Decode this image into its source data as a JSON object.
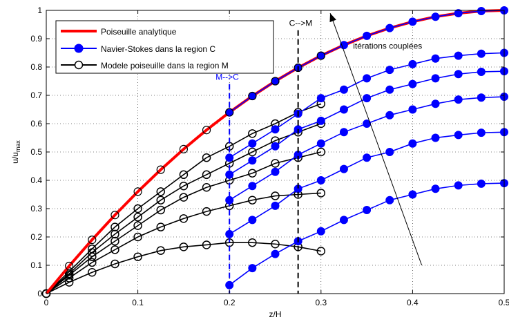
{
  "chart_data": {
    "type": "line",
    "xlabel": "z/H",
    "ylabel_main": "u/u",
    "ylabel_sub": "max",
    "xlim": [
      0,
      0.5
    ],
    "ylim": [
      0,
      1
    ],
    "xticks": [
      0,
      0.1,
      0.2,
      0.3,
      0.4,
      0.5
    ],
    "xtick_labels": [
      "0",
      "0.1",
      "0.2",
      "0.3",
      "0.4",
      "0.5"
    ],
    "yticks": [
      0,
      0.1,
      0.2,
      0.3,
      0.4,
      0.5,
      0.6,
      0.7,
      0.8,
      0.9,
      1
    ],
    "ytick_labels": [
      "0",
      "0.1",
      "0.2",
      "0.3",
      "0.4",
      "0.5",
      "0.6",
      "0.7",
      "0.8",
      "0.9",
      "1"
    ],
    "grid": true,
    "legend": {
      "placement": "top-left",
      "entries": [
        {
          "label": "Poiseuille analytique",
          "color": "#ff0000",
          "marker": "none"
        },
        {
          "label": "Navier-Stokes dans la region C",
          "color": "#0000ff",
          "marker": "filled-circle"
        },
        {
          "label": "Modele poiseuille dans la region M",
          "color": "#000000",
          "marker": "open-circle"
        }
      ]
    },
    "analytic": {
      "label": "Poiseuille analytique",
      "color": "#ff0000",
      "x": [
        0,
        0.025,
        0.05,
        0.075,
        0.1,
        0.125,
        0.15,
        0.175,
        0.2,
        0.225,
        0.25,
        0.275,
        0.3,
        0.325,
        0.35,
        0.375,
        0.4,
        0.425,
        0.45,
        0.475,
        0.5
      ],
      "y": [
        0,
        0.0975,
        0.19,
        0.2775,
        0.36,
        0.4375,
        0.51,
        0.5775,
        0.64,
        0.6975,
        0.75,
        0.7975,
        0.84,
        0.8775,
        0.91,
        0.9375,
        0.96,
        0.9775,
        0.99,
        0.9975,
        1
      ]
    },
    "ns_series": [
      {
        "x": [
          0.2,
          0.225,
          0.25,
          0.275,
          0.3,
          0.325,
          0.35,
          0.375,
          0.4,
          0.425,
          0.45,
          0.475,
          0.5
        ],
        "y": [
          0.03,
          0.09,
          0.14,
          0.185,
          0.22,
          0.26,
          0.295,
          0.33,
          0.35,
          0.37,
          0.382,
          0.388,
          0.39
        ]
      },
      {
        "x": [
          0.2,
          0.225,
          0.25,
          0.275,
          0.3,
          0.325,
          0.35,
          0.375,
          0.4,
          0.425,
          0.45,
          0.475,
          0.5
        ],
        "y": [
          0.21,
          0.26,
          0.31,
          0.37,
          0.4,
          0.44,
          0.48,
          0.5,
          0.53,
          0.55,
          0.56,
          0.568,
          0.57
        ]
      },
      {
        "x": [
          0.2,
          0.225,
          0.25,
          0.275,
          0.3,
          0.325,
          0.35,
          0.375,
          0.4,
          0.425,
          0.45,
          0.475,
          0.5
        ],
        "y": [
          0.33,
          0.38,
          0.43,
          0.49,
          0.53,
          0.57,
          0.6,
          0.63,
          0.65,
          0.67,
          0.685,
          0.692,
          0.695
        ]
      },
      {
        "x": [
          0.2,
          0.225,
          0.25,
          0.275,
          0.3,
          0.325,
          0.35,
          0.375,
          0.4,
          0.425,
          0.45,
          0.475,
          0.5
        ],
        "y": [
          0.42,
          0.47,
          0.52,
          0.58,
          0.61,
          0.65,
          0.69,
          0.72,
          0.74,
          0.76,
          0.775,
          0.783,
          0.785
        ]
      },
      {
        "x": [
          0.2,
          0.225,
          0.25,
          0.275,
          0.3,
          0.325,
          0.35,
          0.375,
          0.4,
          0.425,
          0.45,
          0.475,
          0.5
        ],
        "y": [
          0.48,
          0.53,
          0.58,
          0.635,
          0.69,
          0.72,
          0.76,
          0.79,
          0.81,
          0.83,
          0.84,
          0.847,
          0.85
        ]
      },
      {
        "x": [
          0.2,
          0.225,
          0.25,
          0.275,
          0.3,
          0.325,
          0.35,
          0.375,
          0.4,
          0.425,
          0.45,
          0.475,
          0.5
        ],
        "y": [
          0.64,
          0.6975,
          0.75,
          0.7975,
          0.84,
          0.8775,
          0.91,
          0.9375,
          0.96,
          0.9775,
          0.99,
          0.9975,
          1
        ]
      }
    ],
    "m_series": [
      {
        "x": [
          0,
          0.025,
          0.05,
          0.075,
          0.1,
          0.125,
          0.15,
          0.175,
          0.2,
          0.225,
          0.25,
          0.275,
          0.3
        ],
        "y": [
          0,
          0.04,
          0.075,
          0.105,
          0.13,
          0.152,
          0.165,
          0.172,
          0.18,
          0.18,
          0.175,
          0.165,
          0.15
        ]
      },
      {
        "x": [
          0,
          0.025,
          0.05,
          0.075,
          0.1,
          0.125,
          0.15,
          0.175,
          0.2,
          0.225,
          0.25,
          0.275,
          0.3
        ],
        "y": [
          0,
          0.055,
          0.11,
          0.155,
          0.2,
          0.235,
          0.265,
          0.29,
          0.31,
          0.33,
          0.345,
          0.35,
          0.355
        ]
      },
      {
        "x": [
          0,
          0.025,
          0.05,
          0.075,
          0.1,
          0.125,
          0.15,
          0.175,
          0.2,
          0.225,
          0.25,
          0.275,
          0.3
        ],
        "y": [
          0,
          0.065,
          0.13,
          0.185,
          0.24,
          0.295,
          0.34,
          0.375,
          0.4,
          0.425,
          0.46,
          0.48,
          0.5
        ]
      },
      {
        "x": [
          0,
          0.025,
          0.05,
          0.075,
          0.1,
          0.125,
          0.15,
          0.175,
          0.2,
          0.225,
          0.25,
          0.275,
          0.3
        ],
        "y": [
          0,
          0.07,
          0.145,
          0.21,
          0.27,
          0.33,
          0.38,
          0.42,
          0.46,
          0.5,
          0.54,
          0.57,
          0.6
        ]
      },
      {
        "x": [
          0,
          0.025,
          0.05,
          0.075,
          0.1,
          0.125,
          0.15,
          0.175,
          0.2,
          0.225,
          0.25,
          0.275,
          0.3
        ],
        "y": [
          0,
          0.078,
          0.158,
          0.235,
          0.3,
          0.36,
          0.42,
          0.48,
          0.52,
          0.565,
          0.6,
          0.64,
          0.67
        ]
      }
    ],
    "annotations": {
      "mc_label": "M-->C",
      "mc_x": 0.2,
      "cm_label": "C-->M",
      "cm_x": 0.275,
      "iter_label": "itérations couplées",
      "iter_arrow_from": [
        0.41,
        0.1
      ],
      "iter_arrow_to": [
        0.31,
        0.99
      ]
    }
  }
}
